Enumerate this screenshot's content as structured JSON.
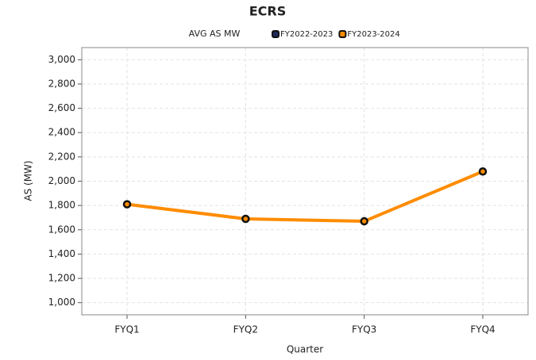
{
  "chart_data": {
    "type": "line",
    "title": "ECRS",
    "legend_title": "AVG AS MW",
    "x_label": "Quarter",
    "y_label": "AS (MW)",
    "categories": [
      "FYQ1",
      "FYQ2",
      "FYQ3",
      "FYQ4"
    ],
    "series": [
      {
        "name": "FY2022-2023",
        "color": "#1f2a5a",
        "values": [
          null,
          null,
          null,
          null
        ]
      },
      {
        "name": "FY2023-2024",
        "color": "#ff8c00",
        "values": [
          1810,
          1690,
          1670,
          2080
        ]
      }
    ],
    "ylim": [
      900,
      3100
    ],
    "yticks": [
      {
        "value": 1000,
        "label": "1,000"
      },
      {
        "value": 1200,
        "label": "1,200"
      },
      {
        "value": 1400,
        "label": "1,400"
      },
      {
        "value": 1600,
        "label": "1,600"
      },
      {
        "value": 1800,
        "label": "1,800"
      },
      {
        "value": 2000,
        "label": "2,000"
      },
      {
        "value": 2200,
        "label": "2,200"
      },
      {
        "value": 2400,
        "label": "2,400"
      },
      {
        "value": 2600,
        "label": "2,600"
      },
      {
        "value": 2800,
        "label": "2,800"
      },
      {
        "value": 3000,
        "label": "3,000"
      }
    ],
    "grid": true
  }
}
